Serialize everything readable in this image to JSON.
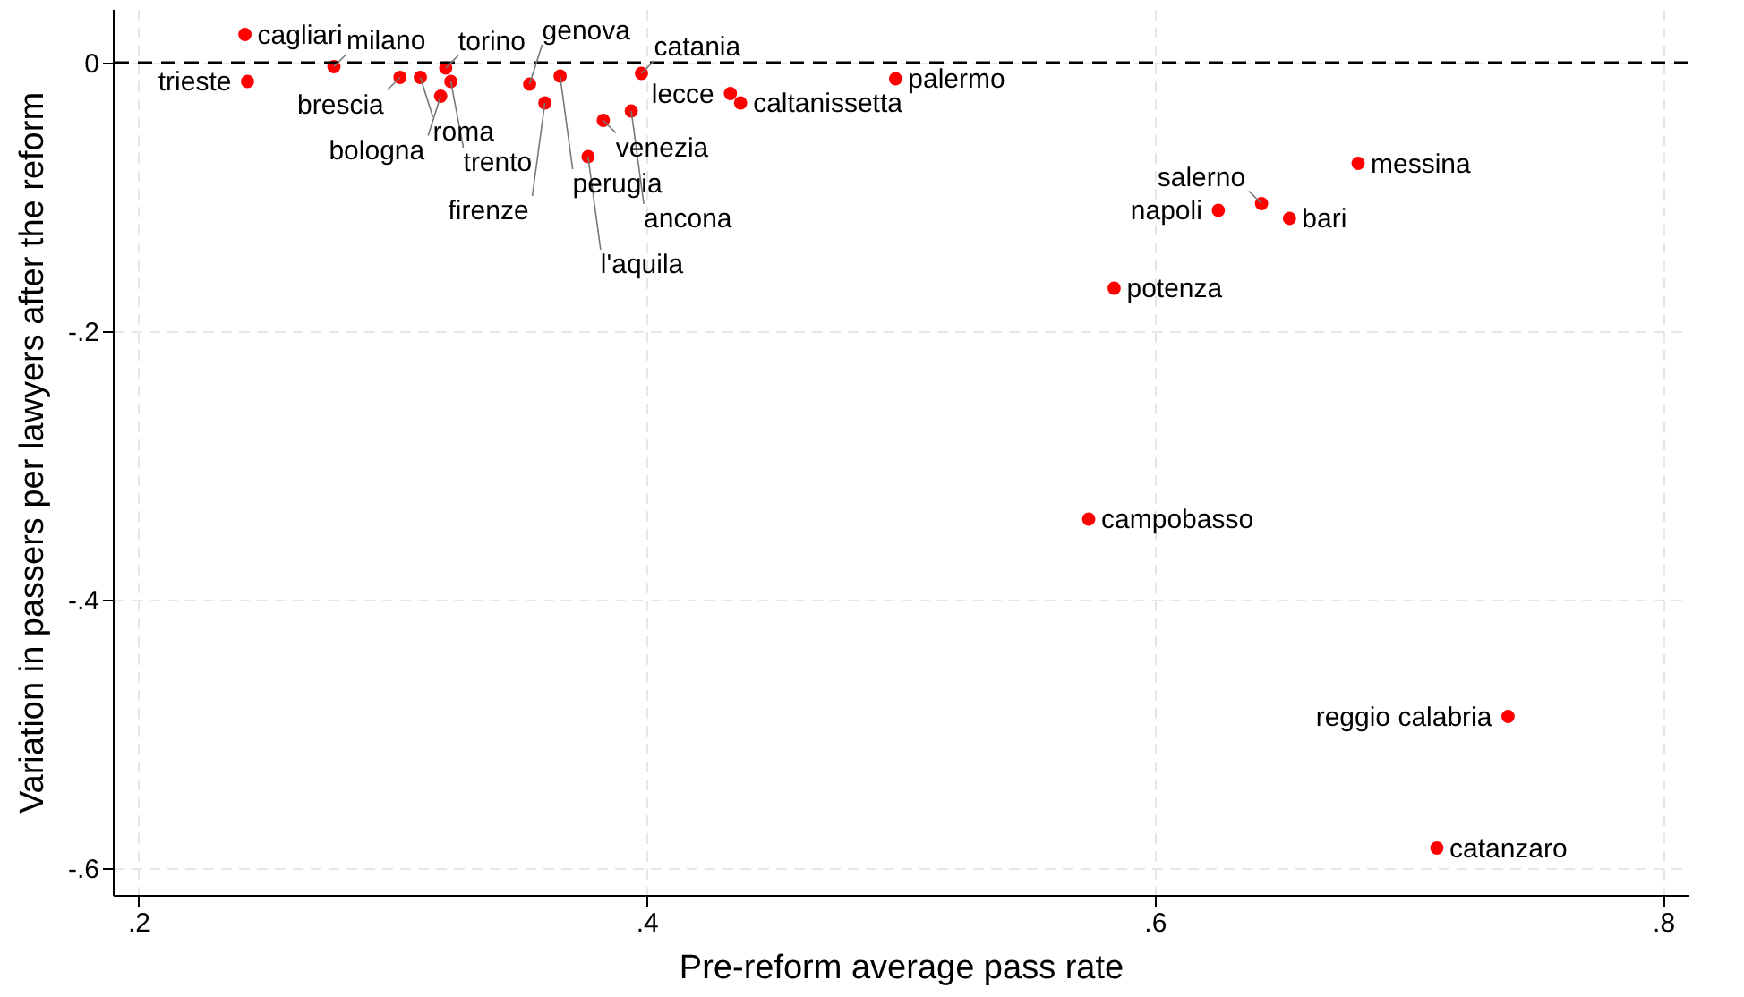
{
  "chart_data": {
    "type": "scatter",
    "xlabel": "Pre-reform average pass rate",
    "ylabel": "Variation in passers per lawyers after the reform",
    "x": [
      0.242,
      0.243,
      0.277,
      0.303,
      0.311,
      0.321,
      0.323,
      0.319,
      0.354,
      0.366,
      0.36,
      0.383,
      0.398,
      0.394,
      0.377,
      0.433,
      0.437,
      0.498,
      0.68,
      0.642,
      0.625,
      0.653,
      0.584,
      0.574,
      0.739,
      0.711
    ],
    "series": [
      {
        "color": "#ff0000",
        "values": [
          0.021,
          -0.014,
          -0.003,
          -0.011,
          -0.011,
          -0.004,
          -0.014,
          -0.025,
          -0.016,
          -0.01,
          -0.03,
          -0.043,
          -0.008,
          -0.036,
          -0.07,
          -0.023,
          -0.03,
          -0.012,
          -0.075,
          -0.105,
          -0.11,
          -0.116,
          -0.168,
          -0.34,
          -0.487,
          -0.585
        ]
      }
    ],
    "annotations": [
      {
        "text": "cagliari",
        "x": 0.242,
        "y": 0.021
      },
      {
        "text": "trieste",
        "x": 0.243,
        "y": -0.014
      },
      {
        "text": "milano",
        "x": 0.277,
        "y": -0.003
      },
      {
        "text": "brescia",
        "x": 0.303,
        "y": -0.011
      },
      {
        "text": "roma",
        "x": 0.311,
        "y": -0.011
      },
      {
        "text": "torino",
        "x": 0.321,
        "y": -0.004
      },
      {
        "text": "trento",
        "x": 0.323,
        "y": -0.014
      },
      {
        "text": "bologna",
        "x": 0.319,
        "y": -0.025
      },
      {
        "text": "genova",
        "x": 0.354,
        "y": -0.016
      },
      {
        "text": "perugia",
        "x": 0.366,
        "y": -0.01
      },
      {
        "text": "firenze",
        "x": 0.36,
        "y": -0.03
      },
      {
        "text": "venezia",
        "x": 0.383,
        "y": -0.043
      },
      {
        "text": "catania",
        "x": 0.398,
        "y": -0.008
      },
      {
        "text": "ancona",
        "x": 0.394,
        "y": -0.036
      },
      {
        "text": "l'aquila",
        "x": 0.377,
        "y": -0.07
      },
      {
        "text": "lecce",
        "x": 0.433,
        "y": -0.023
      },
      {
        "text": "caltanissetta",
        "x": 0.437,
        "y": -0.03
      },
      {
        "text": "palermo",
        "x": 0.498,
        "y": -0.012
      },
      {
        "text": "messina",
        "x": 0.68,
        "y": -0.075
      },
      {
        "text": "salerno",
        "x": 0.642,
        "y": -0.105
      },
      {
        "text": "napoli",
        "x": 0.625,
        "y": -0.11
      },
      {
        "text": "bari",
        "x": 0.653,
        "y": -0.116
      },
      {
        "text": "potenza",
        "x": 0.584,
        "y": -0.168
      },
      {
        "text": "campobasso",
        "x": 0.574,
        "y": -0.34
      },
      {
        "text": "reggio calabria",
        "x": 0.739,
        "y": -0.487
      },
      {
        "text": "catanzaro",
        "x": 0.711,
        "y": -0.585
      }
    ],
    "xlim": [
      0.19,
      0.81
    ],
    "ylim": [
      -0.62,
      0.04
    ],
    "xticks": [
      {
        "value": 0.2,
        "label": ".2"
      },
      {
        "value": 0.4,
        "label": ".4"
      },
      {
        "value": 0.6,
        "label": ".6"
      },
      {
        "value": 0.8,
        "label": ".8"
      }
    ],
    "yticks": [
      {
        "value": -0.6,
        "label": "-.6"
      },
      {
        "value": -0.4,
        "label": "-.4"
      },
      {
        "value": -0.2,
        "label": "-.2"
      },
      0
    ],
    "ref_lines": [
      {
        "axis": "y",
        "value": 0,
        "color": "#000000",
        "line_style": "dashed"
      }
    ],
    "grid": true,
    "marker": "circle"
  }
}
